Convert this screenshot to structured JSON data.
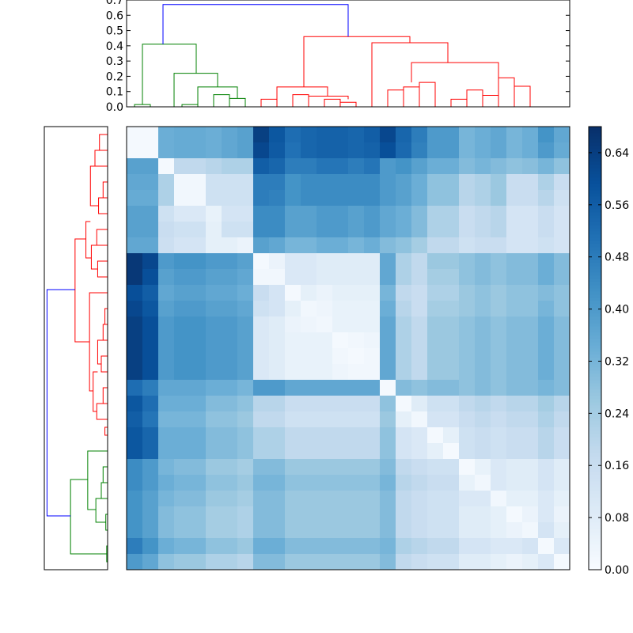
{
  "chart_data": [
    {
      "type": "heatmap",
      "title": "",
      "xlabel": "",
      "ylabel": "",
      "rows": 28,
      "cols": 28,
      "value_range": [
        0,
        0.68
      ],
      "colormap": "Blues",
      "matrix": [
        [
          0.01,
          0.01,
          0.34,
          0.35,
          0.35,
          0.34,
          0.36,
          0.38,
          0.64,
          0.58,
          0.52,
          0.54,
          0.55,
          0.55,
          0.54,
          0.56,
          0.62,
          0.54,
          0.48,
          0.4,
          0.4,
          0.32,
          0.34,
          0.36,
          0.32,
          0.34,
          0.42,
          0.36
        ],
        [
          0.01,
          0.01,
          0.34,
          0.35,
          0.35,
          0.34,
          0.36,
          0.38,
          0.62,
          0.57,
          0.51,
          0.54,
          0.55,
          0.55,
          0.54,
          0.55,
          0.6,
          0.53,
          0.47,
          0.4,
          0.4,
          0.32,
          0.34,
          0.36,
          0.32,
          0.34,
          0.4,
          0.35
        ],
        [
          0.38,
          0.38,
          0.01,
          0.18,
          0.18,
          0.2,
          0.22,
          0.22,
          0.56,
          0.54,
          0.48,
          0.48,
          0.5,
          0.5,
          0.48,
          0.5,
          0.4,
          0.42,
          0.38,
          0.34,
          0.34,
          0.3,
          0.32,
          0.3,
          0.28,
          0.29,
          0.32,
          0.28
        ],
        [
          0.36,
          0.36,
          0.22,
          0.02,
          0.02,
          0.14,
          0.14,
          0.14,
          0.48,
          0.48,
          0.42,
          0.44,
          0.44,
          0.44,
          0.44,
          0.44,
          0.4,
          0.38,
          0.34,
          0.28,
          0.28,
          0.2,
          0.22,
          0.26,
          0.16,
          0.16,
          0.22,
          0.16
        ],
        [
          0.35,
          0.35,
          0.22,
          0.02,
          0.02,
          0.14,
          0.14,
          0.14,
          0.48,
          0.47,
          0.42,
          0.44,
          0.44,
          0.44,
          0.44,
          0.44,
          0.4,
          0.38,
          0.34,
          0.28,
          0.28,
          0.2,
          0.22,
          0.26,
          0.16,
          0.16,
          0.2,
          0.14
        ],
        [
          0.38,
          0.38,
          0.14,
          0.1,
          0.1,
          0.05,
          0.12,
          0.12,
          0.44,
          0.44,
          0.38,
          0.38,
          0.4,
          0.4,
          0.38,
          0.4,
          0.36,
          0.34,
          0.3,
          0.22,
          0.22,
          0.16,
          0.18,
          0.2,
          0.12,
          0.12,
          0.16,
          0.12
        ],
        [
          0.38,
          0.38,
          0.16,
          0.14,
          0.14,
          0.06,
          0.14,
          0.14,
          0.44,
          0.44,
          0.38,
          0.38,
          0.4,
          0.4,
          0.38,
          0.4,
          0.36,
          0.34,
          0.3,
          0.22,
          0.22,
          0.16,
          0.18,
          0.2,
          0.12,
          0.12,
          0.16,
          0.12
        ],
        [
          0.36,
          0.36,
          0.15,
          0.12,
          0.12,
          0.06,
          0.06,
          0.04,
          0.38,
          0.36,
          0.32,
          0.32,
          0.34,
          0.34,
          0.32,
          0.34,
          0.3,
          0.28,
          0.24,
          0.18,
          0.18,
          0.14,
          0.16,
          0.16,
          0.12,
          0.12,
          0.14,
          0.12
        ],
        [
          0.66,
          0.62,
          0.4,
          0.42,
          0.42,
          0.4,
          0.4,
          0.38,
          0.01,
          0.04,
          0.1,
          0.1,
          0.08,
          0.08,
          0.08,
          0.08,
          0.36,
          0.22,
          0.18,
          0.26,
          0.26,
          0.28,
          0.3,
          0.28,
          0.3,
          0.3,
          0.34,
          0.3
        ],
        [
          0.66,
          0.6,
          0.38,
          0.4,
          0.4,
          0.38,
          0.38,
          0.36,
          0.02,
          0.02,
          0.1,
          0.1,
          0.08,
          0.08,
          0.08,
          0.08,
          0.36,
          0.22,
          0.18,
          0.24,
          0.24,
          0.28,
          0.3,
          0.28,
          0.3,
          0.3,
          0.34,
          0.3
        ],
        [
          0.6,
          0.56,
          0.36,
          0.38,
          0.38,
          0.36,
          0.36,
          0.34,
          0.16,
          0.12,
          0.01,
          0.06,
          0.04,
          0.06,
          0.06,
          0.06,
          0.32,
          0.18,
          0.16,
          0.22,
          0.22,
          0.26,
          0.28,
          0.26,
          0.28,
          0.28,
          0.3,
          0.28
        ],
        [
          0.62,
          0.58,
          0.38,
          0.4,
          0.4,
          0.38,
          0.38,
          0.36,
          0.14,
          0.12,
          0.06,
          0.02,
          0.03,
          0.05,
          0.05,
          0.05,
          0.34,
          0.2,
          0.16,
          0.24,
          0.24,
          0.26,
          0.28,
          0.26,
          0.28,
          0.28,
          0.32,
          0.28
        ],
        [
          0.64,
          0.6,
          0.4,
          0.42,
          0.42,
          0.4,
          0.4,
          0.38,
          0.1,
          0.08,
          0.04,
          0.03,
          0.02,
          0.05,
          0.05,
          0.05,
          0.36,
          0.22,
          0.18,
          0.26,
          0.26,
          0.28,
          0.3,
          0.28,
          0.3,
          0.3,
          0.34,
          0.3
        ],
        [
          0.64,
          0.6,
          0.4,
          0.42,
          0.42,
          0.4,
          0.4,
          0.38,
          0.1,
          0.08,
          0.05,
          0.05,
          0.05,
          0.01,
          0.02,
          0.03,
          0.36,
          0.22,
          0.18,
          0.26,
          0.26,
          0.28,
          0.3,
          0.28,
          0.3,
          0.3,
          0.34,
          0.3
        ],
        [
          0.64,
          0.6,
          0.4,
          0.42,
          0.42,
          0.4,
          0.4,
          0.38,
          0.1,
          0.08,
          0.05,
          0.05,
          0.05,
          0.02,
          0.01,
          0.02,
          0.36,
          0.22,
          0.18,
          0.26,
          0.26,
          0.28,
          0.3,
          0.28,
          0.3,
          0.3,
          0.34,
          0.3
        ],
        [
          0.64,
          0.6,
          0.4,
          0.42,
          0.42,
          0.4,
          0.4,
          0.38,
          0.1,
          0.08,
          0.05,
          0.05,
          0.05,
          0.03,
          0.02,
          0.02,
          0.36,
          0.22,
          0.18,
          0.26,
          0.26,
          0.28,
          0.3,
          0.28,
          0.3,
          0.3,
          0.34,
          0.3
        ],
        [
          0.52,
          0.48,
          0.36,
          0.36,
          0.36,
          0.34,
          0.34,
          0.32,
          0.4,
          0.4,
          0.36,
          0.36,
          0.36,
          0.36,
          0.36,
          0.36,
          0.01,
          0.3,
          0.28,
          0.3,
          0.3,
          0.28,
          0.3,
          0.28,
          0.3,
          0.3,
          0.32,
          0.3
        ],
        [
          0.58,
          0.52,
          0.34,
          0.34,
          0.34,
          0.3,
          0.3,
          0.28,
          0.2,
          0.2,
          0.16,
          0.16,
          0.16,
          0.16,
          0.16,
          0.16,
          0.28,
          0.01,
          0.08,
          0.14,
          0.14,
          0.18,
          0.2,
          0.18,
          0.2,
          0.2,
          0.24,
          0.2
        ],
        [
          0.56,
          0.5,
          0.32,
          0.32,
          0.32,
          0.28,
          0.28,
          0.26,
          0.18,
          0.18,
          0.14,
          0.14,
          0.14,
          0.14,
          0.14,
          0.14,
          0.26,
          0.06,
          0.02,
          0.12,
          0.12,
          0.16,
          0.18,
          0.16,
          0.18,
          0.18,
          0.22,
          0.18
        ],
        [
          0.58,
          0.54,
          0.34,
          0.34,
          0.34,
          0.3,
          0.3,
          0.28,
          0.22,
          0.22,
          0.18,
          0.18,
          0.18,
          0.18,
          0.18,
          0.18,
          0.28,
          0.12,
          0.1,
          0.01,
          0.06,
          0.14,
          0.16,
          0.14,
          0.16,
          0.16,
          0.2,
          0.16
        ],
        [
          0.58,
          0.54,
          0.34,
          0.34,
          0.34,
          0.3,
          0.3,
          0.28,
          0.22,
          0.22,
          0.18,
          0.18,
          0.18,
          0.18,
          0.18,
          0.18,
          0.28,
          0.12,
          0.1,
          0.06,
          0.01,
          0.14,
          0.16,
          0.14,
          0.16,
          0.16,
          0.2,
          0.16
        ],
        [
          0.44,
          0.4,
          0.32,
          0.3,
          0.3,
          0.26,
          0.26,
          0.24,
          0.3,
          0.3,
          0.26,
          0.26,
          0.26,
          0.26,
          0.26,
          0.26,
          0.3,
          0.18,
          0.16,
          0.14,
          0.14,
          0.01,
          0.05,
          0.1,
          0.08,
          0.08,
          0.12,
          0.08
        ],
        [
          0.44,
          0.4,
          0.34,
          0.32,
          0.32,
          0.28,
          0.28,
          0.26,
          0.32,
          0.32,
          0.28,
          0.28,
          0.28,
          0.28,
          0.28,
          0.28,
          0.32,
          0.2,
          0.18,
          0.16,
          0.16,
          0.05,
          0.02,
          0.1,
          0.08,
          0.08,
          0.12,
          0.08
        ],
        [
          0.42,
          0.38,
          0.32,
          0.3,
          0.3,
          0.26,
          0.26,
          0.24,
          0.3,
          0.3,
          0.26,
          0.26,
          0.26,
          0.26,
          0.26,
          0.26,
          0.3,
          0.18,
          0.16,
          0.14,
          0.14,
          0.1,
          0.1,
          0.02,
          0.06,
          0.06,
          0.1,
          0.06
        ],
        [
          0.42,
          0.38,
          0.3,
          0.28,
          0.28,
          0.24,
          0.24,
          0.22,
          0.3,
          0.3,
          0.26,
          0.26,
          0.26,
          0.26,
          0.26,
          0.26,
          0.3,
          0.18,
          0.16,
          0.14,
          0.14,
          0.08,
          0.08,
          0.06,
          0.01,
          0.04,
          0.1,
          0.04
        ],
        [
          0.42,
          0.38,
          0.3,
          0.28,
          0.28,
          0.24,
          0.24,
          0.22,
          0.3,
          0.3,
          0.26,
          0.26,
          0.26,
          0.26,
          0.26,
          0.26,
          0.3,
          0.18,
          0.16,
          0.14,
          0.14,
          0.08,
          0.08,
          0.06,
          0.04,
          0.02,
          0.12,
          0.06
        ],
        [
          0.48,
          0.42,
          0.34,
          0.32,
          0.32,
          0.28,
          0.28,
          0.26,
          0.34,
          0.34,
          0.3,
          0.3,
          0.3,
          0.3,
          0.3,
          0.3,
          0.32,
          0.22,
          0.2,
          0.18,
          0.18,
          0.12,
          0.12,
          0.1,
          0.1,
          0.12,
          0.01,
          0.1
        ],
        [
          0.4,
          0.36,
          0.28,
          0.26,
          0.26,
          0.22,
          0.22,
          0.2,
          0.3,
          0.3,
          0.26,
          0.26,
          0.26,
          0.26,
          0.26,
          0.26,
          0.3,
          0.18,
          0.16,
          0.14,
          0.14,
          0.08,
          0.08,
          0.06,
          0.04,
          0.06,
          0.1,
          0.01
        ]
      ]
    },
    {
      "type": "dendrogram",
      "orientation": "top",
      "ylim": [
        0,
        0.7
      ],
      "yticks": [
        "0.0",
        "0.1",
        "0.2",
        "0.3",
        "0.4",
        "0.5",
        "0.6",
        "0.7"
      ],
      "leaves": 28,
      "root_height": 0.67,
      "clusters": [
        {
          "name": "green",
          "color": "#008000",
          "leaves": [
            0,
            7
          ],
          "height": 0.41
        },
        {
          "name": "red",
          "color": "#ff0000",
          "leaves": [
            8,
            27
          ],
          "height": 0.46
        }
      ]
    },
    {
      "type": "dendrogram",
      "orientation": "left",
      "leaves": 28,
      "clusters": [
        {
          "name": "red",
          "color": "#ff0000",
          "leaves": [
            0,
            19
          ]
        },
        {
          "name": "green",
          "color": "#008000",
          "leaves": [
            20,
            27
          ]
        }
      ]
    },
    {
      "type": "colorbar",
      "range": [
        0.0,
        0.68
      ],
      "ticks": [
        "0.00",
        "0.08",
        "0.16",
        "0.24",
        "0.32",
        "0.40",
        "0.48",
        "0.56",
        "0.64"
      ]
    }
  ]
}
